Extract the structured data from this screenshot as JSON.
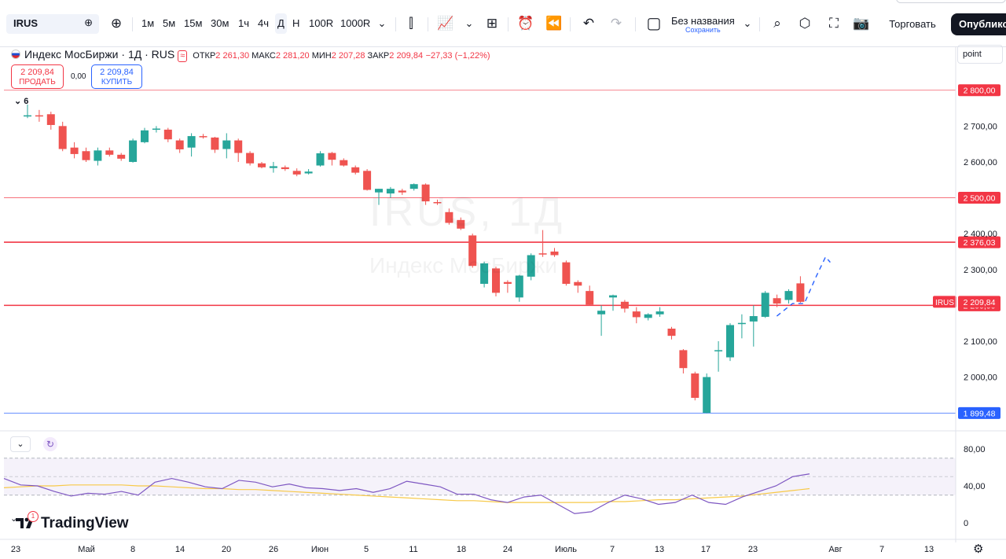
{
  "toolbar": {
    "symbol": "IRUS",
    "intervals": [
      "1м",
      "5м",
      "15м",
      "30м",
      "1ч",
      "4ч",
      "Д",
      "Н",
      "100R",
      "1000R"
    ],
    "selected_interval": "Д",
    "layout_name": "Без названия",
    "layout_save": "Сохранить",
    "trade_label": "Торговать",
    "publish_label": "Опублико"
  },
  "legend": {
    "title": "Индекс МосБиржи · 1Д · RUS",
    "open_label": "ОТКР",
    "open": "2 261,30",
    "high_label": "МАКС",
    "high": "2 281,20",
    "low_label": "МИН",
    "low": "2 207,28",
    "close_label": "ЗАКР",
    "close": "2 209,84",
    "change": "−27,33 (−1,22%)",
    "sell_price": "2 209,84",
    "sell_label": "ПРОДАТЬ",
    "buy_price": "2 209,84",
    "buy_label": "КУПИТЬ",
    "spread": "0,00",
    "indicators_count": "6"
  },
  "price_scale": {
    "mode": "point",
    "ticks": [
      "2 700,00",
      "2 600,00",
      "2 400,00",
      "2 300,00",
      "2 100,00",
      "2 000,00"
    ],
    "level_labels": [
      "2 800,00",
      "2 500,00",
      "2 376,03",
      "2 200,00",
      "1 899,48"
    ],
    "current_symbol": "IRUS",
    "current_price": "2 209,84"
  },
  "rsi_scale": {
    "ticks": [
      "80,00",
      "40,00",
      "0"
    ]
  },
  "time_axis": {
    "labels": [
      "23",
      "Май",
      "8",
      "14",
      "20",
      "26",
      "Июн",
      "5",
      "11",
      "18",
      "24",
      "Июль",
      "7",
      "13",
      "17",
      "23",
      "Авг",
      "7",
      "13"
    ]
  },
  "watermark": {
    "symbol": "IRUS, 1Д",
    "name": "Индекс МосБиржи"
  },
  "branding": {
    "logo": "TradingView",
    "badge": "1"
  },
  "colors": {
    "up": "#26a69a",
    "down": "#ef5350",
    "rsi": "#7e57c2",
    "rsi_ma": "#f7c948",
    "level": "#f23645",
    "level_blue": "#2962ff",
    "forecast": "#2962ff"
  },
  "chart_data": {
    "type": "candlestick",
    "y_range": [
      1850,
      2920
    ],
    "horizontal_levels": [
      2800,
      2500,
      2376.03,
      2200,
      1899.48
    ],
    "candles": [
      {
        "o": 2730,
        "h": 2760,
        "l": 2722,
        "c": 2730
      },
      {
        "o": 2730,
        "h": 2745,
        "l": 2712,
        "c": 2727
      },
      {
        "o": 2733,
        "h": 2740,
        "l": 2690,
        "c": 2703
      },
      {
        "o": 2700,
        "h": 2712,
        "l": 2630,
        "c": 2636
      },
      {
        "o": 2640,
        "h": 2655,
        "l": 2610,
        "c": 2622
      },
      {
        "o": 2630,
        "h": 2640,
        "l": 2600,
        "c": 2605
      },
      {
        "o": 2603,
        "h": 2640,
        "l": 2590,
        "c": 2632
      },
      {
        "o": 2632,
        "h": 2640,
        "l": 2615,
        "c": 2620
      },
      {
        "o": 2620,
        "h": 2625,
        "l": 2603,
        "c": 2609
      },
      {
        "o": 2600,
        "h": 2665,
        "l": 2598,
        "c": 2660
      },
      {
        "o": 2655,
        "h": 2695,
        "l": 2652,
        "c": 2688
      },
      {
        "o": 2690,
        "h": 2700,
        "l": 2682,
        "c": 2693
      },
      {
        "o": 2690,
        "h": 2695,
        "l": 2655,
        "c": 2663
      },
      {
        "o": 2660,
        "h": 2665,
        "l": 2625,
        "c": 2635
      },
      {
        "o": 2640,
        "h": 2680,
        "l": 2615,
        "c": 2672
      },
      {
        "o": 2672,
        "h": 2678,
        "l": 2665,
        "c": 2669
      },
      {
        "o": 2668,
        "h": 2670,
        "l": 2625,
        "c": 2634
      },
      {
        "o": 2636,
        "h": 2680,
        "l": 2610,
        "c": 2660
      },
      {
        "o": 2660,
        "h": 2665,
        "l": 2600,
        "c": 2625
      },
      {
        "o": 2625,
        "h": 2630,
        "l": 2590,
        "c": 2596
      },
      {
        "o": 2596,
        "h": 2600,
        "l": 2582,
        "c": 2585
      },
      {
        "o": 2583,
        "h": 2600,
        "l": 2570,
        "c": 2588
      },
      {
        "o": 2585,
        "h": 2590,
        "l": 2575,
        "c": 2580
      },
      {
        "o": 2575,
        "h": 2582,
        "l": 2560,
        "c": 2565
      },
      {
        "o": 2568,
        "h": 2580,
        "l": 2565,
        "c": 2573
      },
      {
        "o": 2590,
        "h": 2630,
        "l": 2587,
        "c": 2624
      },
      {
        "o": 2625,
        "h": 2628,
        "l": 2590,
        "c": 2606
      },
      {
        "o": 2605,
        "h": 2610,
        "l": 2587,
        "c": 2590
      },
      {
        "o": 2585,
        "h": 2590,
        "l": 2565,
        "c": 2570
      },
      {
        "o": 2575,
        "h": 2580,
        "l": 2520,
        "c": 2522
      },
      {
        "o": 2515,
        "h": 2525,
        "l": 2480,
        "c": 2525
      },
      {
        "o": 2512,
        "h": 2530,
        "l": 2500,
        "c": 2525
      },
      {
        "o": 2520,
        "h": 2525,
        "l": 2508,
        "c": 2515
      },
      {
        "o": 2525,
        "h": 2540,
        "l": 2520,
        "c": 2538
      },
      {
        "o": 2537,
        "h": 2540,
        "l": 2480,
        "c": 2490
      },
      {
        "o": 2488,
        "h": 2495,
        "l": 2480,
        "c": 2487
      },
      {
        "o": 2460,
        "h": 2470,
        "l": 2425,
        "c": 2430
      },
      {
        "o": 2438,
        "h": 2445,
        "l": 2410,
        "c": 2414
      },
      {
        "o": 2395,
        "h": 2400,
        "l": 2305,
        "c": 2310
      },
      {
        "o": 2260,
        "h": 2322,
        "l": 2250,
        "c": 2317
      },
      {
        "o": 2303,
        "h": 2308,
        "l": 2225,
        "c": 2235
      },
      {
        "o": 2265,
        "h": 2270,
        "l": 2235,
        "c": 2260
      },
      {
        "o": 2222,
        "h": 2285,
        "l": 2210,
        "c": 2283
      },
      {
        "o": 2280,
        "h": 2345,
        "l": 2270,
        "c": 2340
      },
      {
        "o": 2345,
        "h": 2410,
        "l": 2335,
        "c": 2342
      },
      {
        "o": 2350,
        "h": 2360,
        "l": 2335,
        "c": 2340
      },
      {
        "o": 2320,
        "h": 2325,
        "l": 2255,
        "c": 2260
      },
      {
        "o": 2265,
        "h": 2270,
        "l": 2235,
        "c": 2255
      },
      {
        "o": 2240,
        "h": 2255,
        "l": 2200,
        "c": 2202
      },
      {
        "o": 2175,
        "h": 2200,
        "l": 2115,
        "c": 2185
      },
      {
        "o": 2222,
        "h": 2230,
        "l": 2185,
        "c": 2228
      },
      {
        "o": 2210,
        "h": 2215,
        "l": 2180,
        "c": 2191
      },
      {
        "o": 2183,
        "h": 2195,
        "l": 2150,
        "c": 2167
      },
      {
        "o": 2165,
        "h": 2178,
        "l": 2158,
        "c": 2175
      },
      {
        "o": 2175,
        "h": 2195,
        "l": 2168,
        "c": 2183
      },
      {
        "o": 2135,
        "h": 2140,
        "l": 2105,
        "c": 2115
      },
      {
        "o": 2075,
        "h": 2078,
        "l": 2010,
        "c": 2025
      },
      {
        "o": 2010,
        "h": 2015,
        "l": 1935,
        "c": 1942
      },
      {
        "o": 1900,
        "h": 2010,
        "l": 1899,
        "c": 2000
      },
      {
        "o": 2075,
        "h": 2100,
        "l": 2015,
        "c": 2075
      },
      {
        "o": 2055,
        "h": 2150,
        "l": 2045,
        "c": 2145
      },
      {
        "o": 2150,
        "h": 2175,
        "l": 2108,
        "c": 2151
      },
      {
        "o": 2155,
        "h": 2200,
        "l": 2085,
        "c": 2170
      },
      {
        "o": 2168,
        "h": 2240,
        "l": 2165,
        "c": 2235
      },
      {
        "o": 2220,
        "h": 2230,
        "l": 2195,
        "c": 2205
      },
      {
        "o": 2215,
        "h": 2245,
        "l": 2205,
        "c": 2240
      },
      {
        "o": 2261.3,
        "h": 2281.2,
        "l": 2207.28,
        "c": 2209.84
      }
    ],
    "rsi": [
      48,
      41,
      40,
      34,
      29,
      32,
      31,
      34,
      30,
      44,
      48,
      44,
      39,
      37,
      46,
      44,
      39,
      42,
      38,
      37,
      35,
      37,
      33,
      37,
      45,
      42,
      39,
      31,
      31,
      25,
      22,
      28,
      30,
      20,
      10,
      12,
      22,
      30,
      26,
      20,
      22,
      30,
      22,
      20,
      28,
      34,
      40,
      50,
      53
    ],
    "rsi_ma": [
      38,
      39,
      40,
      40,
      41,
      41,
      41,
      41,
      40,
      40,
      39,
      38,
      37,
      37,
      36,
      36,
      35,
      34,
      33,
      32,
      31,
      30,
      29,
      28,
      27,
      26,
      25,
      24,
      24,
      23,
      22,
      22,
      22,
      22,
      22,
      22,
      23,
      23,
      24,
      25,
      25,
      26,
      27,
      28,
      29,
      31,
      33,
      35,
      37
    ],
    "rsi_range": [
      0,
      80
    ]
  }
}
